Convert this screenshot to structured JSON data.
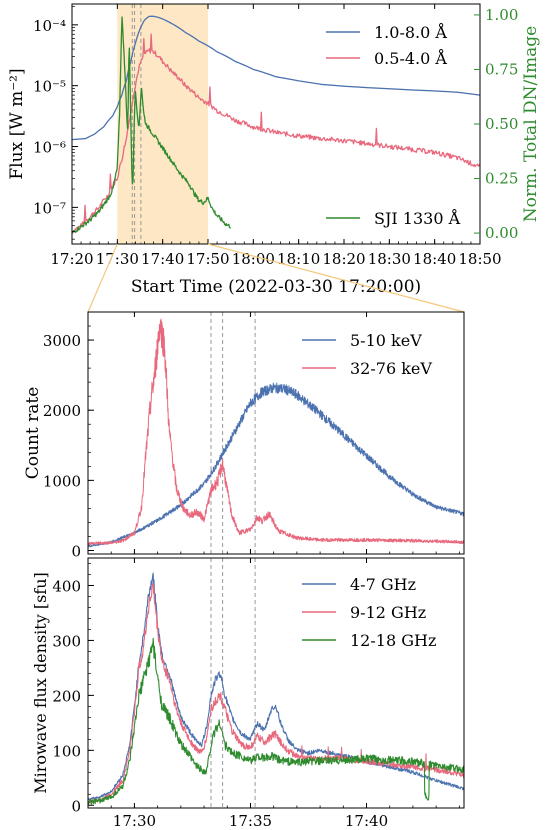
{
  "colors": {
    "blue": "#4c72b0",
    "red": "#e8697d",
    "green": "#2e8b2e",
    "shade": "#fde7c4",
    "vline": "#9a9a9a"
  },
  "chart_data": [
    {
      "type": "line",
      "ylabel": "Flux [W m⁻²]",
      "y2label": "Norm. Total DN/Image",
      "xlabel": "Start Time (2022-03-30 17:20:00)",
      "x_unit": "minutes after 17:20",
      "xlim": [
        0,
        90
      ],
      "yscale": "log",
      "ylim": [
        2.5e-08,
        0.00022
      ],
      "y2lim": [
        -0.05,
        1.05
      ],
      "x_ticks": [
        0,
        10,
        20,
        30,
        40,
        50,
        60,
        70,
        80,
        90
      ],
      "x_tick_labels": [
        "17:20",
        "17:30",
        "17:40",
        "17:50",
        "18:00",
        "18:10",
        "18:20",
        "18:30",
        "18:40",
        "18:50"
      ],
      "y_ticks": [
        1e-07,
        1e-06,
        1e-05,
        0.0001
      ],
      "y_tick_labels": [
        "10⁻⁷",
        "10⁻⁶",
        "10⁻⁵",
        "10⁻⁴"
      ],
      "y2_ticks": [
        0,
        0.25,
        0.5,
        0.75,
        1.0
      ],
      "y2_tick_labels": [
        "0.00",
        "0.25",
        "0.50",
        "0.75",
        "1.00"
      ],
      "shaded_span": [
        10,
        30
      ],
      "vlines": [
        13.3,
        13.8,
        15.2
      ],
      "legend_upper": "top-right",
      "legend_lower": "bottom-right",
      "series": [
        {
          "name": "1.0-8.0 Å",
          "color": "blue",
          "axis": "left",
          "x": [
            0,
            3,
            5,
            7,
            9,
            10,
            11,
            12,
            13,
            14,
            15,
            16,
            17,
            18,
            19,
            20,
            22,
            25,
            28,
            32,
            36,
            40,
            45,
            50,
            55,
            60,
            65,
            70,
            75,
            80,
            85,
            90
          ],
          "y": [
            1.3e-06,
            1.35e-06,
            1.6e-06,
            2.1e-06,
            3.2e-06,
            4.5e-06,
            7e-06,
            1.2e-05,
            2.5e-05,
            5e-05,
            8.5e-05,
            0.00012,
            0.000138,
            0.000138,
            0.000133,
            0.000125,
            0.000105,
            7.5e-05,
            5.4e-05,
            3.6e-05,
            2.5e-05,
            1.85e-05,
            1.4e-05,
            1.2e-05,
            1.05e-05,
            9.8e-06,
            9.3e-06,
            8.9e-06,
            8.5e-06,
            8.2e-06,
            7.8e-06,
            7e-06
          ]
        },
        {
          "name": "0.5-4.0 Å",
          "color": "red",
          "axis": "left",
          "x": [
            0,
            2,
            4,
            6,
            8,
            10,
            11,
            12,
            13,
            14,
            15,
            16,
            17,
            18,
            19,
            20,
            22,
            25,
            28,
            32,
            36,
            40,
            45,
            50,
            55,
            60,
            65,
            70,
            75,
            80,
            85,
            90
          ],
          "y": [
            4e-08,
            5e-08,
            7e-08,
            1e-07,
            1.6e-07,
            3e-07,
            6e-07,
            1.3e-06,
            3.5e-06,
            1e-05,
            2.2e-05,
            3.3e-05,
            3.8e-05,
            3.6e-05,
            3.1e-05,
            2.5e-05,
            1.7e-05,
            1e-05,
            6.3e-06,
            3.9e-06,
            2.7e-06,
            2.1e-06,
            1.7e-06,
            1.5e-06,
            1.35e-06,
            1.25e-06,
            1.12e-06,
            1e-06,
            9e-07,
            8e-07,
            6.5e-07,
            4.5e-07
          ]
        },
        {
          "name": "SJI 1330 Å",
          "color": "green",
          "axis": "right",
          "x": [
            0,
            2,
            4,
            6,
            8,
            9,
            10,
            10.5,
            11,
            11.5,
            12,
            12.3,
            12.6,
            12.9,
            13.2,
            13.4,
            13.7,
            14,
            14.4,
            14.8,
            15.3,
            15.8,
            16.3,
            17,
            18,
            19,
            20,
            22,
            24,
            26,
            27,
            28,
            29,
            30,
            31,
            32,
            33,
            34,
            35
          ],
          "y": [
            0.0,
            0.03,
            0.06,
            0.1,
            0.16,
            0.2,
            0.3,
            0.55,
            1.0,
            0.82,
            0.58,
            0.45,
            0.9,
            0.6,
            0.28,
            0.18,
            0.5,
            0.65,
            0.55,
            0.48,
            0.68,
            0.55,
            0.5,
            0.48,
            0.45,
            0.42,
            0.39,
            0.33,
            0.27,
            0.22,
            0.18,
            0.15,
            0.14,
            0.16,
            0.11,
            0.08,
            0.06,
            0.04,
            0.03
          ]
        }
      ]
    },
    {
      "type": "line",
      "ylabel": "Count rate",
      "xlim": [
        28,
        44.2
      ],
      "ylim": [
        -50,
        3400
      ],
      "y_ticks": [
        0,
        1000,
        2000,
        3000
      ],
      "y_tick_labels": [
        "0",
        "1000",
        "2000",
        "3000"
      ],
      "vlines": [
        33.3,
        33.8,
        35.2
      ],
      "legend": "top-right",
      "series": [
        {
          "name": "5-10 keV",
          "color": "blue",
          "x": [
            28,
            29,
            30,
            31,
            32,
            33,
            33.5,
            34,
            34.5,
            35,
            35.5,
            36,
            36.5,
            37,
            38,
            39,
            40,
            41,
            42,
            43,
            44.2
          ],
          "y": [
            60,
            120,
            250,
            430,
            650,
            950,
            1200,
            1500,
            1800,
            2100,
            2260,
            2320,
            2300,
            2220,
            1950,
            1650,
            1350,
            1050,
            800,
            620,
            520
          ]
        },
        {
          "name": "32-76 keV",
          "color": "red",
          "x": [
            28,
            29,
            29.5,
            30,
            30.3,
            30.5,
            30.7,
            30.9,
            31.1,
            31.3,
            31.5,
            31.8,
            32.1,
            32.4,
            32.7,
            33,
            33.3,
            33.6,
            33.8,
            34,
            34.2,
            34.5,
            35,
            35.3,
            35.5,
            35.8,
            36.2,
            37,
            38,
            40,
            42,
            44.2
          ],
          "y": [
            100,
            110,
            140,
            250,
            600,
            1400,
            2100,
            2600,
            3250,
            2900,
            1700,
            900,
            600,
            500,
            550,
            450,
            850,
            1000,
            1250,
            850,
            500,
            250,
            300,
            480,
            420,
            520,
            280,
            180,
            150,
            150,
            140,
            120
          ]
        }
      ]
    },
    {
      "type": "line",
      "ylabel": "Mirowave flux density [sfu]",
      "xlim": [
        28,
        44.2
      ],
      "ylim": [
        -5,
        450
      ],
      "x_ticks": [
        30,
        35,
        40
      ],
      "x_tick_labels": [
        "17:30",
        "17:35",
        "17:40"
      ],
      "y_ticks": [
        0,
        100,
        200,
        300,
        400
      ],
      "y_tick_labels": [
        "0",
        "100",
        "200",
        "300",
        "400"
      ],
      "vlines": [
        33.3,
        33.8,
        35.2
      ],
      "legend": "top-right",
      "series": [
        {
          "name": "4-7 GHz",
          "color": "blue",
          "x": [
            28,
            28.5,
            29,
            29.5,
            29.8,
            30,
            30.2,
            30.4,
            30.6,
            30.8,
            31,
            31.2,
            31.5,
            31.8,
            32,
            32.3,
            32.6,
            32.9,
            33.1,
            33.3,
            33.5,
            33.7,
            33.9,
            34.2,
            34.6,
            35,
            35.3,
            35.6,
            35.9,
            36.1,
            36.3,
            36.6,
            37,
            37.5,
            38,
            39,
            40,
            41,
            42,
            43,
            44.2
          ],
          "y": [
            10,
            15,
            25,
            55,
            110,
            180,
            260,
            310,
            380,
            420,
            330,
            270,
            240,
            190,
            160,
            140,
            120,
            110,
            140,
            200,
            230,
            240,
            200,
            160,
            130,
            120,
            150,
            135,
            175,
            180,
            150,
            120,
            100,
            95,
            100,
            90,
            80,
            70,
            60,
            45,
            30
          ]
        },
        {
          "name": "9-12 GHz",
          "color": "red",
          "x": [
            28,
            28.5,
            29,
            29.5,
            29.8,
            30,
            30.2,
            30.4,
            30.6,
            30.8,
            31,
            31.2,
            31.5,
            31.8,
            32,
            32.3,
            32.6,
            32.9,
            33.1,
            33.3,
            33.5,
            33.7,
            33.9,
            34.2,
            34.6,
            35,
            35.3,
            35.6,
            35.9,
            36.1,
            36.3,
            36.6,
            37,
            37.5,
            38,
            39,
            40,
            41,
            42,
            43,
            44.2
          ],
          "y": [
            5,
            10,
            20,
            45,
            100,
            170,
            250,
            290,
            360,
            400,
            320,
            260,
            230,
            175,
            150,
            125,
            105,
            95,
            120,
            175,
            190,
            200,
            175,
            135,
            110,
            105,
            125,
            115,
            125,
            130,
            115,
            100,
            90,
            85,
            85,
            85,
            80,
            75,
            70,
            65,
            55
          ]
        },
        {
          "name": "12-18 GHz",
          "color": "green",
          "x": [
            28,
            28.5,
            29,
            29.5,
            29.8,
            30,
            30.2,
            30.4,
            30.6,
            30.8,
            31,
            31.2,
            31.5,
            31.8,
            32,
            32.3,
            32.6,
            32.9,
            33.1,
            33.3,
            33.5,
            33.7,
            33.9,
            34.2,
            34.6,
            35,
            35.3,
            35.6,
            35.9,
            36.1,
            36.3,
            36.6,
            37,
            37.5,
            38,
            39,
            40,
            41,
            42,
            43,
            44.2
          ],
          "y": [
            5,
            8,
            15,
            35,
            80,
            140,
            200,
            230,
            260,
            295,
            230,
            180,
            160,
            130,
            110,
            95,
            75,
            65,
            60,
            110,
            140,
            150,
            110,
            95,
            90,
            80,
            90,
            85,
            90,
            85,
            82,
            80,
            78,
            80,
            80,
            82,
            85,
            82,
            80,
            72,
            65
          ]
        }
      ]
    }
  ]
}
